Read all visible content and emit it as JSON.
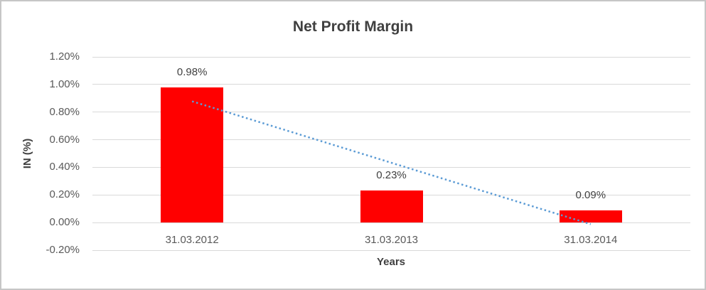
{
  "chart_data": {
    "type": "bar",
    "title": "Net Profit Margin",
    "xlabel": "Years",
    "ylabel": "IN (%)",
    "categories": [
      "31.03.2012",
      "31.03.2013",
      "31.03.2014"
    ],
    "values": [
      0.98,
      0.23,
      0.09
    ],
    "data_labels": [
      "0.98%",
      "0.23%",
      "0.09%"
    ],
    "yticks": [
      1.2,
      1.0,
      0.8,
      0.6,
      0.4,
      0.2,
      0.0,
      -0.2
    ],
    "ytick_labels": [
      "1.20%",
      "1.00%",
      "0.80%",
      "0.60%",
      "0.40%",
      "0.20%",
      "0.00%",
      "-0.20%"
    ],
    "ylim": [
      -0.2,
      1.2
    ],
    "grid": true,
    "legend": "none",
    "bar_color": "#ff0000",
    "gridline_color": "#d9d9d9",
    "trendline": {
      "type": "linear",
      "style": "dotted",
      "color": "#5b9bd5",
      "start_value": 0.878,
      "end_value": -0.012
    }
  }
}
